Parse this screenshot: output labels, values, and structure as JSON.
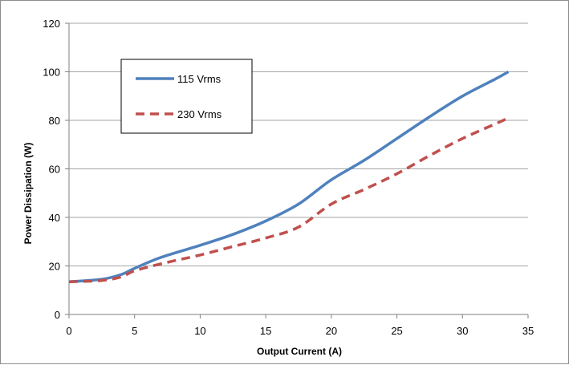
{
  "chart_data": {
    "type": "line",
    "title": "",
    "xlabel": "Output Current (A)",
    "ylabel": "Power Dissipation (W)",
    "xlim": [
      0,
      35
    ],
    "ylim": [
      0,
      120
    ],
    "xticks": [
      0,
      5,
      10,
      15,
      20,
      25,
      30,
      35
    ],
    "yticks": [
      0,
      20,
      40,
      60,
      80,
      100,
      120
    ],
    "grid": "horizontal",
    "legend": "top-left",
    "series": [
      {
        "name": "115 Vrms",
        "color": "#4f81bd",
        "dash": "solid",
        "x": [
          0,
          2.5,
          4,
          5,
          7,
          10,
          12.5,
          15,
          17.5,
          20,
          22.5,
          25,
          27.5,
          30,
          32.5,
          33.5
        ],
        "y": [
          13.5,
          14.5,
          16.5,
          19,
          23.5,
          28.5,
          33,
          38.5,
          45.5,
          55.5,
          63.5,
          72.5,
          81.5,
          90,
          97,
          100
        ]
      },
      {
        "name": "230 Vrms",
        "color": "#c0504d",
        "dash": "dashed",
        "x": [
          0,
          2.5,
          4,
          5,
          7.5,
          10,
          12.5,
          15,
          17.5,
          20,
          22.5,
          25,
          27.5,
          30,
          32.5,
          33.5
        ],
        "y": [
          13.5,
          14,
          15.5,
          18,
          21.5,
          24.5,
          28,
          31.5,
          36,
          45.5,
          51.5,
          58,
          65.5,
          72.5,
          78.5,
          81
        ]
      }
    ]
  }
}
